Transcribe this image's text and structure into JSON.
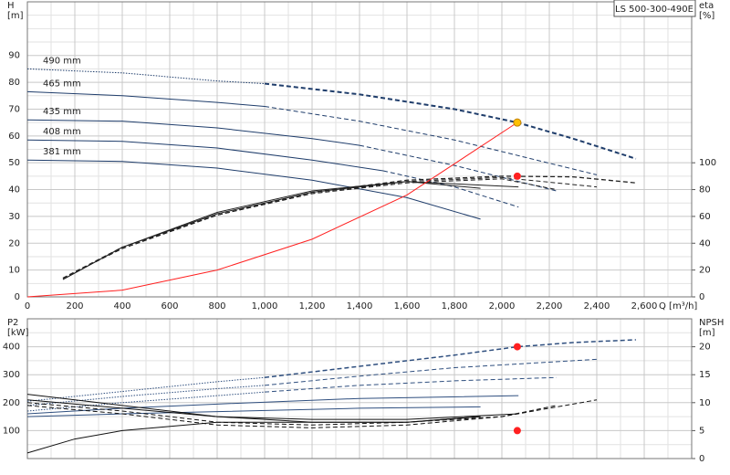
{
  "title": "LS 500-300-490E",
  "chart_data": [
    {
      "type": "line",
      "ylabel": "H",
      "yunit": "[m]",
      "y2label": "eta",
      "y2unit": "[%]",
      "xlabel": "Q [m³/h]",
      "xlim": [
        0,
        2800
      ],
      "ylim": [
        0,
        110
      ],
      "y2lim": [
        0,
        220
      ],
      "grid": true,
      "minor_grid": true,
      "show_xtick_labels": true,
      "xticks": [
        0,
        200,
        400,
        600,
        800,
        {
          "value": 1000,
          "label": "1,000"
        },
        {
          "value": 1200,
          "label": "1,200"
        },
        {
          "value": 1400,
          "label": "1,400"
        },
        {
          "value": 1600,
          "label": "1,600"
        },
        {
          "value": 1800,
          "label": "1,800"
        },
        {
          "value": 2000,
          "label": "2,000"
        },
        {
          "value": 2200,
          "label": "2,200"
        },
        {
          "value": 2400,
          "label": "2,400"
        },
        {
          "value": 2600,
          "label": "2,600"
        }
      ],
      "yticks": [
        0,
        10,
        20,
        30,
        40,
        50,
        60,
        70,
        80,
        90
      ],
      "y2ticks": [
        0,
        20,
        40,
        60,
        80,
        100
      ],
      "series": [
        {
          "name": "490 mm",
          "color": "#1f3d6b",
          "style": "dotted",
          "width": 1,
          "x": [
            0,
            400,
            800,
            1000
          ],
          "values": [
            85,
            83.5,
            80.5,
            79.5
          ]
        },
        {
          "color": "#1f3d6b",
          "style": "dashed",
          "width": 2,
          "x": [
            1000,
            1400,
            1800,
            2065,
            2300,
            2565
          ],
          "values": [
            79.5,
            75.5,
            70,
            65,
            59,
            51.5
          ]
        },
        {
          "name": "465 mm",
          "color": "#1f3d6b",
          "style": "solid",
          "width": 1,
          "x": [
            0,
            400,
            800,
            1000
          ],
          "values": [
            76.5,
            75,
            72.5,
            71
          ]
        },
        {
          "color": "#1f3d6b",
          "style": "dashed",
          "width": 1,
          "x": [
            1000,
            1400,
            1800,
            2400
          ],
          "values": [
            71,
            65.5,
            58.5,
            45.5
          ]
        },
        {
          "name": "435 mm",
          "color": "#1f3d6b",
          "style": "solid",
          "width": 1,
          "x": [
            0,
            400,
            800,
            1200,
            1400
          ],
          "values": [
            66,
            65.5,
            63,
            59,
            56.5
          ]
        },
        {
          "color": "#1f3d6b",
          "style": "dashed",
          "width": 1,
          "x": [
            1400,
            1800,
            2230
          ],
          "values": [
            56.5,
            49,
            39.5
          ]
        },
        {
          "name": "408 mm",
          "color": "#1f3d6b",
          "style": "solid",
          "width": 1,
          "x": [
            0,
            400,
            800,
            1200,
            1500
          ],
          "values": [
            58.5,
            58,
            55.5,
            51,
            47
          ]
        },
        {
          "color": "#1f3d6b",
          "style": "dashed",
          "width": 1,
          "x": [
            1500,
            1800,
            2070
          ],
          "values": [
            47,
            41,
            33.5
          ]
        },
        {
          "name": "381 mm",
          "color": "#1f3d6b",
          "style": "solid",
          "width": 1,
          "x": [
            0,
            400,
            800,
            1200,
            1600,
            1910
          ],
          "values": [
            51,
            50.5,
            48,
            43.5,
            37,
            29
          ]
        },
        {
          "color": "#222222",
          "style": "solid",
          "width": 1,
          "axis": "y2",
          "x": [
            150,
            400,
            800,
            1200,
            1600,
            1910
          ],
          "values": [
            13,
            37,
            63,
            79,
            86,
            81
          ]
        },
        {
          "color": "#222222",
          "style": "solid",
          "width": 1,
          "axis": "y2",
          "x": [
            150,
            400,
            800,
            1200,
            1600,
            2070
          ],
          "values": [
            13,
            37,
            62,
            78,
            86,
            82
          ]
        },
        {
          "color": "#222222",
          "style": "dashed",
          "width": 1,
          "axis": "y2",
          "x": [
            150,
            400,
            800,
            1200,
            1600,
            2000,
            2230
          ],
          "values": [
            14,
            36,
            61,
            77,
            85,
            88,
            80
          ]
        },
        {
          "color": "#222222",
          "style": "dashed",
          "width": 1,
          "axis": "y2",
          "x": [
            150,
            400,
            800,
            1200,
            1600,
            2000,
            2400
          ],
          "values": [
            14,
            36,
            61,
            77,
            86,
            89,
            82
          ]
        },
        {
          "color": "#222222",
          "style": "dashed",
          "width": 1.3,
          "axis": "y2",
          "x": [
            150,
            400,
            800,
            1200,
            1600,
            2000,
            2300,
            2565
          ],
          "values": [
            14,
            37,
            61,
            78,
            87,
            90,
            89.5,
            85
          ]
        },
        {
          "color": "#ff2020",
          "style": "solid",
          "width": 1,
          "x": [
            0,
            400,
            800,
            1200,
            1600,
            2065
          ],
          "values": [
            0,
            2.5,
            10,
            21.5,
            38,
            65
          ]
        }
      ],
      "points": [
        {
          "x": 2065,
          "value": 65,
          "color": "#ffc000"
        },
        {
          "x": 2065,
          "value": 90,
          "color": "#ff2020",
          "axis": "y2"
        }
      ]
    },
    {
      "type": "line",
      "ylabel": "P2",
      "yunit": "[kW]",
      "y2label": "NPSH",
      "y2unit": "[m]",
      "xlim": [
        0,
        2800
      ],
      "ylim": [
        0,
        500
      ],
      "y2lim": [
        0,
        25
      ],
      "grid": true,
      "minor_grid": true,
      "show_xtick_labels": false,
      "xticks": [
        0,
        200,
        400,
        600,
        800,
        1000,
        1200,
        1400,
        1600,
        1800,
        2000,
        2200,
        2400,
        2600
      ],
      "yticks": [
        100,
        200,
        300,
        400
      ],
      "y2ticks": [
        0,
        5,
        10,
        15,
        20
      ],
      "series": [
        {
          "color": "#2f4f7f",
          "style": "dotted",
          "width": 1,
          "x": [
            0,
            400,
            800,
            1000
          ],
          "values": [
            205,
            240,
            275,
            290
          ]
        },
        {
          "color": "#2f4f7f",
          "style": "dashed",
          "width": 1.5,
          "x": [
            1000,
            1400,
            1800,
            2065,
            2300,
            2565
          ],
          "values": [
            290,
            330,
            370,
            400,
            415,
            425
          ]
        },
        {
          "color": "#2f4f7f",
          "style": "dotted",
          "width": 1,
          "x": [
            0,
            400,
            800,
            1000
          ],
          "values": [
            190,
            222,
            250,
            262
          ]
        },
        {
          "color": "#2f4f7f",
          "style": "dashed",
          "width": 1,
          "x": [
            1000,
            1400,
            1800,
            2400
          ],
          "values": [
            262,
            295,
            325,
            355
          ]
        },
        {
          "color": "#2f4f7f",
          "style": "dotted",
          "width": 1,
          "x": [
            0,
            400,
            800,
            1000
          ],
          "values": [
            170,
            200,
            225,
            238
          ]
        },
        {
          "color": "#2f4f7f",
          "style": "dashed",
          "width": 1,
          "x": [
            1000,
            1400,
            1800,
            2230
          ],
          "values": [
            238,
            262,
            278,
            290
          ]
        },
        {
          "color": "#2f4f7f",
          "style": "solid",
          "width": 1,
          "x": [
            0,
            400,
            800,
            1400,
            2070
          ],
          "values": [
            160,
            180,
            195,
            215,
            225
          ]
        },
        {
          "color": "#2f4f7f",
          "style": "solid",
          "width": 1,
          "x": [
            0,
            400,
            800,
            1400,
            1910
          ],
          "values": [
            150,
            160,
            168,
            180,
            185
          ]
        },
        {
          "color": "#111111",
          "style": "solid",
          "width": 1,
          "axis": "y2",
          "x": [
            0,
            400,
            800,
            1200,
            1600,
            1910
          ],
          "values": [
            11.5,
            9.5,
            7.5,
            6.5,
            6.5,
            7.5
          ]
        },
        {
          "color": "#111111",
          "style": "solid",
          "width": 1,
          "axis": "y2",
          "x": [
            0,
            400,
            800,
            1200,
            1600,
            2070
          ],
          "values": [
            10.5,
            9,
            7.5,
            7,
            7,
            8
          ]
        },
        {
          "color": "#111111",
          "style": "dashed",
          "width": 1,
          "axis": "y2",
          "x": [
            0,
            400,
            800,
            1200,
            1600,
            2000,
            2230
          ],
          "values": [
            10,
            8.5,
            6.5,
            6,
            6.5,
            7.5,
            9.5
          ]
        },
        {
          "color": "#111111",
          "style": "dashed",
          "width": 1,
          "axis": "y2",
          "x": [
            0,
            400,
            800,
            1200,
            1600,
            2000,
            2400
          ],
          "values": [
            9.5,
            8,
            6,
            5.5,
            6,
            7.5,
            10.5
          ]
        },
        {
          "color": "#111111",
          "style": "solid",
          "width": 1,
          "axis": "y2",
          "x": [
            0,
            200,
            400,
            800,
            1200,
            1600,
            1910
          ],
          "values": [
            1,
            3.5,
            5,
            6.5,
            6.5,
            6.5,
            7.5
          ]
        }
      ],
      "points": [
        {
          "x": 2065,
          "value": 400,
          "color": "#ff2020"
        },
        {
          "x": 2065,
          "value": 5,
          "color": "#ff2020",
          "axis": "y2"
        }
      ]
    }
  ]
}
